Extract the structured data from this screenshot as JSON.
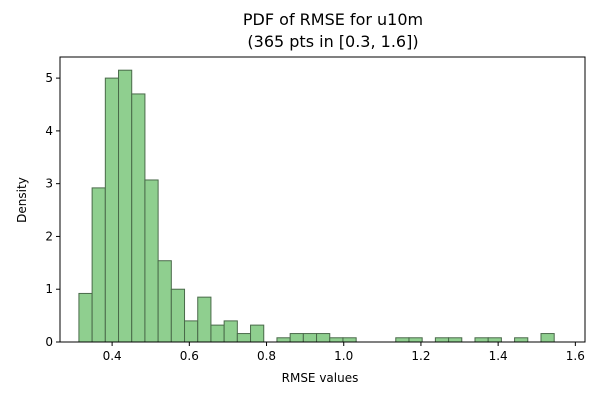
{
  "chart_data": {
    "type": "histogram",
    "title_line1": "PDF of RMSE for u10m",
    "title_line2": "(365 pts in [0.3, 1.6])",
    "xlabel": "RMSE values",
    "ylabel": "Density",
    "xlim": [
      0.265,
      1.625
    ],
    "ylim": [
      0,
      5.4
    ],
    "x_ticks": [
      0.4,
      0.6,
      0.8,
      1.0,
      1.2,
      1.4,
      1.6
    ],
    "x_tick_labels": [
      "0.4",
      "0.6",
      "0.8",
      "1.0",
      "1.2",
      "1.4",
      "1.6"
    ],
    "y_ticks": [
      0,
      1,
      2,
      3,
      4,
      5
    ],
    "y_tick_labels": [
      "0",
      "1",
      "2",
      "3",
      "4",
      "5"
    ],
    "bin_start": 0.314,
    "bin_width": 0.0342,
    "densities": [
      0.92,
      2.92,
      5.0,
      5.15,
      4.7,
      3.07,
      1.54,
      1.0,
      0.4,
      0.85,
      0.32,
      0.4,
      0.16,
      0.32,
      0,
      0.08,
      0.16,
      0.16,
      0.16,
      0.08,
      0.08,
      0,
      0,
      0,
      0.08,
      0.08,
      0,
      0.08,
      0.08,
      0,
      0.08,
      0.08,
      0,
      0.08,
      0,
      0.16
    ],
    "colors": {
      "bar_fill": "#8fcf8f",
      "bar_stroke": "#4a6a4a"
    }
  }
}
